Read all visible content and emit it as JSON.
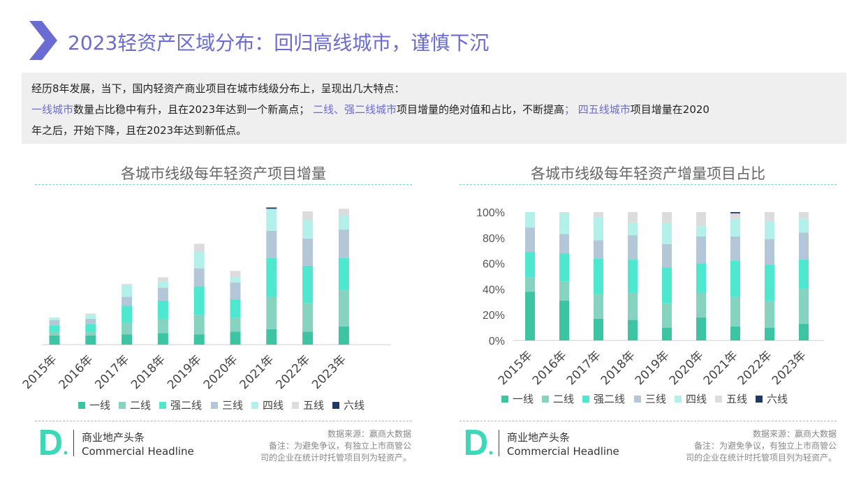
{
  "title": "2023轻资产区域分布：回归高线城市，谨慎下沉",
  "intro": {
    "line1": "经历8年发展，当下，国内轻资产商业项目在城市线级分布上，呈现出几大特点：",
    "hl1": "一线城市",
    "t1": "数量占比稳中有升，且在2023年达到一个新高点；",
    "hl2": " 二线、强二线城市",
    "t2": "项目增量的绝对值和占比，不断提高",
    "hl3": "； 四五线城市",
    "t3": "项目增量在2020",
    "t4": "年之后，开始下降，且在2023年达到新低点。"
  },
  "colors": {
    "一线": "#3cc4a3",
    "二线": "#86d4c0",
    "强二线": "#4de8cf",
    "三线": "#b3c7d9",
    "四线": "#b4f0ea",
    "五线": "#dcdcdc",
    "六线": "#1f3864",
    "accent": "#6b6bd4"
  },
  "footer": {
    "brand_cn": "商业地产头条",
    "brand_en": "Commercial Headline",
    "source": "数据来源：赢商大数据",
    "note1": "备注：为避免争议，有独立上市商管公",
    "note2": "司的企业在统计时托管项目列为轻资产。"
  },
  "chart_data": [
    {
      "type": "bar",
      "stacked": true,
      "title": "各城市线级每年轻资产项目增量",
      "categories": [
        "2015年",
        "2016年",
        "2017年",
        "2018年",
        "2019年",
        "2020年",
        "2021年",
        "2022年",
        "2023年"
      ],
      "series": [
        {
          "name": "一线",
          "values": [
            7,
            7,
            8,
            9,
            8,
            10,
            12,
            10,
            14
          ]
        },
        {
          "name": "二线",
          "values": [
            3,
            3,
            9,
            11,
            15,
            11,
            25,
            22,
            28
          ]
        },
        {
          "name": "强二线",
          "values": [
            5,
            6,
            13,
            14,
            22,
            14,
            30,
            29,
            25
          ]
        },
        {
          "name": "三线",
          "values": [
            4,
            4,
            7,
            10,
            14,
            13,
            21,
            21,
            22
          ]
        },
        {
          "name": "四线",
          "values": [
            2,
            3,
            9,
            5,
            13,
            4,
            17,
            14,
            11
          ]
        },
        {
          "name": "五线",
          "values": [
            0,
            1,
            1,
            3,
            6,
            5,
            0,
            7,
            5
          ]
        },
        {
          "name": "六线",
          "values": [
            0,
            0,
            0,
            0,
            0,
            0,
            1,
            0,
            0
          ]
        }
      ],
      "ylim": [
        0,
        110
      ],
      "legend": "bottom"
    },
    {
      "type": "bar",
      "stacked": true,
      "title": "各城市线级每年轻资产增量项目占比",
      "categories": [
        "2015年",
        "2016年",
        "2017年",
        "2018年",
        "2019年",
        "2020年",
        "2021年",
        "2022年",
        "2023年"
      ],
      "y_ticks": [
        "0%",
        "20%",
        "40%",
        "60%",
        "80%",
        "100%"
      ],
      "series": [
        {
          "name": "一线",
          "values": [
            38,
            31,
            17,
            16,
            10,
            18,
            11,
            10,
            13
          ]
        },
        {
          "name": "二线",
          "values": [
            11,
            15,
            19,
            21,
            19,
            19,
            23,
            21,
            27
          ]
        },
        {
          "name": "强二线",
          "values": [
            20,
            22,
            28,
            26,
            28,
            23,
            28,
            28,
            23
          ]
        },
        {
          "name": "三线",
          "values": [
            19,
            15,
            14,
            19,
            18,
            21,
            19,
            20,
            21
          ]
        },
        {
          "name": "四线",
          "values": [
            12,
            16,
            18,
            10,
            17,
            8,
            14,
            14,
            11
          ]
        },
        {
          "name": "五线",
          "values": [
            0,
            1,
            4,
            8,
            8,
            11,
            4,
            7,
            5
          ]
        },
        {
          "name": "六线",
          "values": [
            0,
            0,
            0,
            0,
            0,
            0,
            1,
            0,
            0
          ]
        }
      ],
      "ylim": [
        0,
        100
      ],
      "legend": "bottom"
    }
  ]
}
